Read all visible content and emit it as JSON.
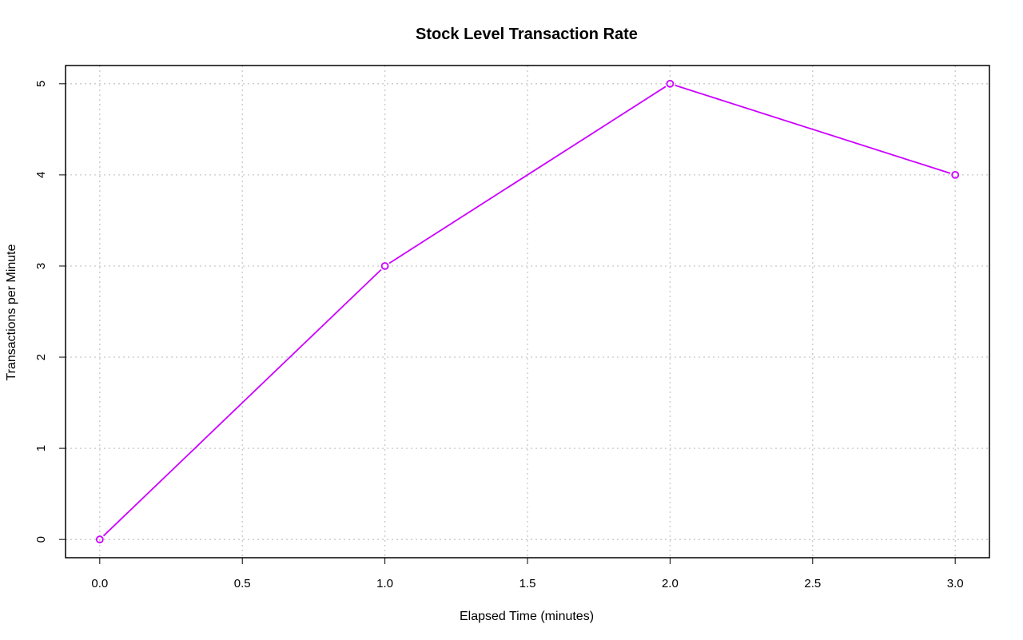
{
  "chart_data": {
    "type": "line",
    "title": "Stock Level Transaction Rate",
    "xlabel": "Elapsed Time (minutes)",
    "ylabel": "Transactions per Minute",
    "xlim": [
      -0.12,
      3.12
    ],
    "ylim": [
      -0.2,
      5.2
    ],
    "x_ticks": [
      0.0,
      0.5,
      1.0,
      1.5,
      2.0,
      2.5,
      3.0
    ],
    "x_tick_labels": [
      "0.0",
      "0.5",
      "1.0",
      "1.5",
      "2.0",
      "2.5",
      "3.0"
    ],
    "y_ticks": [
      0,
      1,
      2,
      3,
      4,
      5
    ],
    "y_tick_labels": [
      "0",
      "1",
      "2",
      "3",
      "4",
      "5"
    ],
    "grid": true,
    "legend": "none",
    "series": [
      {
        "color": "#cc00ff",
        "marker": "open-circle",
        "x": [
          0,
          1,
          2,
          3
        ],
        "y": [
          0,
          3,
          5,
          4
        ]
      }
    ]
  }
}
